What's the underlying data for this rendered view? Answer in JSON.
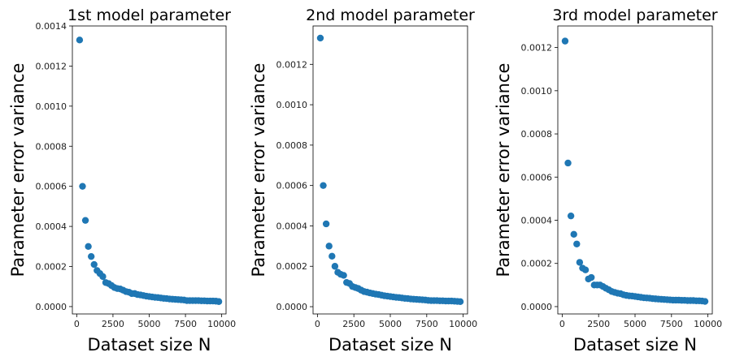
{
  "chart_data": [
    {
      "type": "scatter",
      "title": "1st model parameter",
      "xlabel": "Dataset size N",
      "ylabel": "Parameter error variance",
      "xlim": [
        -300,
        10300
      ],
      "ylim": [
        -3.67e-05,
        0.0014
      ],
      "xticks": [
        0,
        2500,
        5000,
        7500,
        10000
      ],
      "xtick_labels": [
        "0",
        "2500",
        "5000",
        "7500",
        "10000"
      ],
      "yticks": [
        0,
        0.0002,
        0.0004,
        0.0006,
        0.0008,
        0.001,
        0.0012,
        0.0014
      ],
      "ytick_labels": [
        "0.0000",
        "0.0002",
        "0.0004",
        "0.0006",
        "0.0008",
        "0.0010",
        "0.0012",
        "0.0014"
      ],
      "color": "#1f77b4",
      "x_start": 200,
      "x_step": 200,
      "y": [
        0.00133,
        0.0006,
        0.00043,
        0.0003,
        0.00025,
        0.00021,
        0.00018,
        0.000165,
        0.00015,
        0.00012,
        0.000115,
        0.000105,
        9.5e-05,
        9e-05,
        8.8e-05,
        8.2e-05,
        7.5e-05,
        7.2e-05,
        6.5e-05,
        6.5e-05,
        6e-05,
        5.8e-05,
        5.5e-05,
        5.2e-05,
        5e-05,
        4.8e-05,
        4.6e-05,
        4.5e-05,
        4.3e-05,
        4.1e-05,
        4e-05,
        3.8e-05,
        3.7e-05,
        3.6e-05,
        3.5e-05,
        3.4e-05,
        3.3e-05,
        3e-05,
        3e-05,
        3e-05,
        3e-05,
        3e-05,
        2.9e-05,
        2.9e-05,
        2.8e-05,
        2.8e-05,
        2.8e-05,
        2.7e-05,
        2.5e-05
      ]
    },
    {
      "type": "scatter",
      "title": "2nd model parameter",
      "xlabel": "Dataset size N",
      "ylabel": "Parameter error variance",
      "xlim": [
        -300,
        10300
      ],
      "ylim": [
        -3.6e-05,
        0.00139
      ],
      "xticks": [
        0,
        2500,
        5000,
        7500,
        10000
      ],
      "xtick_labels": [
        "0",
        "2500",
        "5000",
        "7500",
        "10000"
      ],
      "yticks": [
        0,
        0.0002,
        0.0004,
        0.0006,
        0.0008,
        0.001,
        0.0012
      ],
      "ytick_labels": [
        "0.0000",
        "0.0002",
        "0.0004",
        "0.0006",
        "0.0008",
        "0.0010",
        "0.0012"
      ],
      "color": "#1f77b4",
      "x_start": 200,
      "x_step": 200,
      "y": [
        0.00133,
        0.0006,
        0.00041,
        0.0003,
        0.00025,
        0.0002,
        0.00017,
        0.00016,
        0.000155,
        0.00012,
        0.000115,
        0.0001,
        9.5e-05,
        9e-05,
        8.2e-05,
        7.5e-05,
        7.2e-05,
        6.8e-05,
        6.5e-05,
        6.2e-05,
        6e-05,
        5.7e-05,
        5.4e-05,
        5.2e-05,
        5e-05,
        4.8e-05,
        4.6e-05,
        4.5e-05,
        4.3e-05,
        4.1e-05,
        4e-05,
        3.8e-05,
        3.7e-05,
        3.6e-05,
        3.5e-05,
        3.4e-05,
        3.3e-05,
        3.1e-05,
        3e-05,
        3e-05,
        3e-05,
        2.9e-05,
        2.9e-05,
        2.8e-05,
        2.8e-05,
        2.8e-05,
        2.7e-05,
        2.6e-05,
        2.5e-05
      ]
    },
    {
      "type": "scatter",
      "title": "3rd model parameter",
      "xlabel": "Dataset size N",
      "ylabel": "Parameter error variance",
      "xlim": [
        -300,
        10300
      ],
      "ylim": [
        -3.4e-05,
        0.0013
      ],
      "xticks": [
        0,
        2500,
        5000,
        7500,
        10000
      ],
      "xtick_labels": [
        "0",
        "2500",
        "5000",
        "7500",
        "10000"
      ],
      "yticks": [
        0,
        0.0002,
        0.0004,
        0.0006,
        0.0008,
        0.001,
        0.0012
      ],
      "ytick_labels": [
        "0.0000",
        "0.0002",
        "0.0004",
        "0.0006",
        "0.0008",
        "0.0010",
        "0.0012"
      ],
      "color": "#1f77b4",
      "x_start": 200,
      "x_step": 200,
      "y": [
        0.00123,
        0.000665,
        0.00042,
        0.000335,
        0.00029,
        0.000205,
        0.000178,
        0.00017,
        0.000128,
        0.000135,
        0.0001,
        0.0001,
        0.0001,
        9.3e-05,
        8.5e-05,
        7.8e-05,
        7e-05,
        6.6e-05,
        6.2e-05,
        6e-05,
        5.5e-05,
        5.2e-05,
        5e-05,
        4.9e-05,
        4.7e-05,
        4.5e-05,
        4.3e-05,
        4.1e-05,
        4e-05,
        3.9e-05,
        3.7e-05,
        3.6e-05,
        3.5e-05,
        3.4e-05,
        3.3e-05,
        3.2e-05,
        3.1e-05,
        3e-05,
        3e-05,
        3e-05,
        2.9e-05,
        2.9e-05,
        2.8e-05,
        2.8e-05,
        2.8e-05,
        2.7e-05,
        2.7e-05,
        2.6e-05,
        2.4e-05
      ]
    }
  ]
}
